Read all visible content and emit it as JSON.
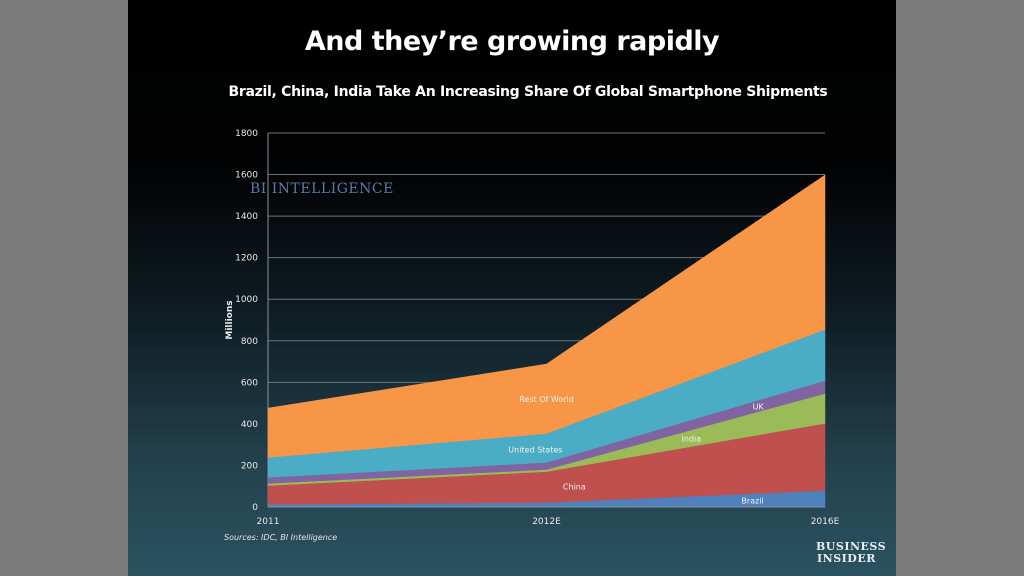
{
  "slide": {
    "title": "And they’re growing rapidly",
    "sources": "Sources: IDC, BI Intelligence",
    "watermark": "BI INTELLIGENCE",
    "logo_line1": "BUSINESS",
    "logo_line2": "INSIDER"
  },
  "chart_data": {
    "type": "area",
    "stacked": true,
    "title": "Brazil, China, India Take An Increasing Share Of Global Smartphone Shipments",
    "xlabel": "",
    "ylabel": "Millions",
    "categories": [
      "2011",
      "2012E",
      "2016E"
    ],
    "ylim": [
      0,
      1800
    ],
    "yticks": [
      0,
      200,
      400,
      600,
      800,
      1000,
      1200,
      1400,
      1600,
      1800
    ],
    "grid": true,
    "legend": "inline labels",
    "series": [
      {
        "name": "Brazil",
        "color": "#4f81bd",
        "values": [
          10,
          19,
          77
        ]
      },
      {
        "name": "China",
        "color": "#c0504d",
        "values": [
          91,
          149,
          323
        ]
      },
      {
        "name": "India",
        "color": "#9bbb59",
        "values": [
          10,
          10,
          144
        ]
      },
      {
        "name": "UK",
        "color": "#8064a2",
        "values": [
          29,
          34,
          62
        ]
      },
      {
        "name": "United States",
        "color": "#4bacc6",
        "values": [
          96,
          139,
          246
        ]
      },
      {
        "name": "Rest Of World",
        "color": "#f79646",
        "values": [
          240,
          337,
          746
        ]
      }
    ]
  }
}
